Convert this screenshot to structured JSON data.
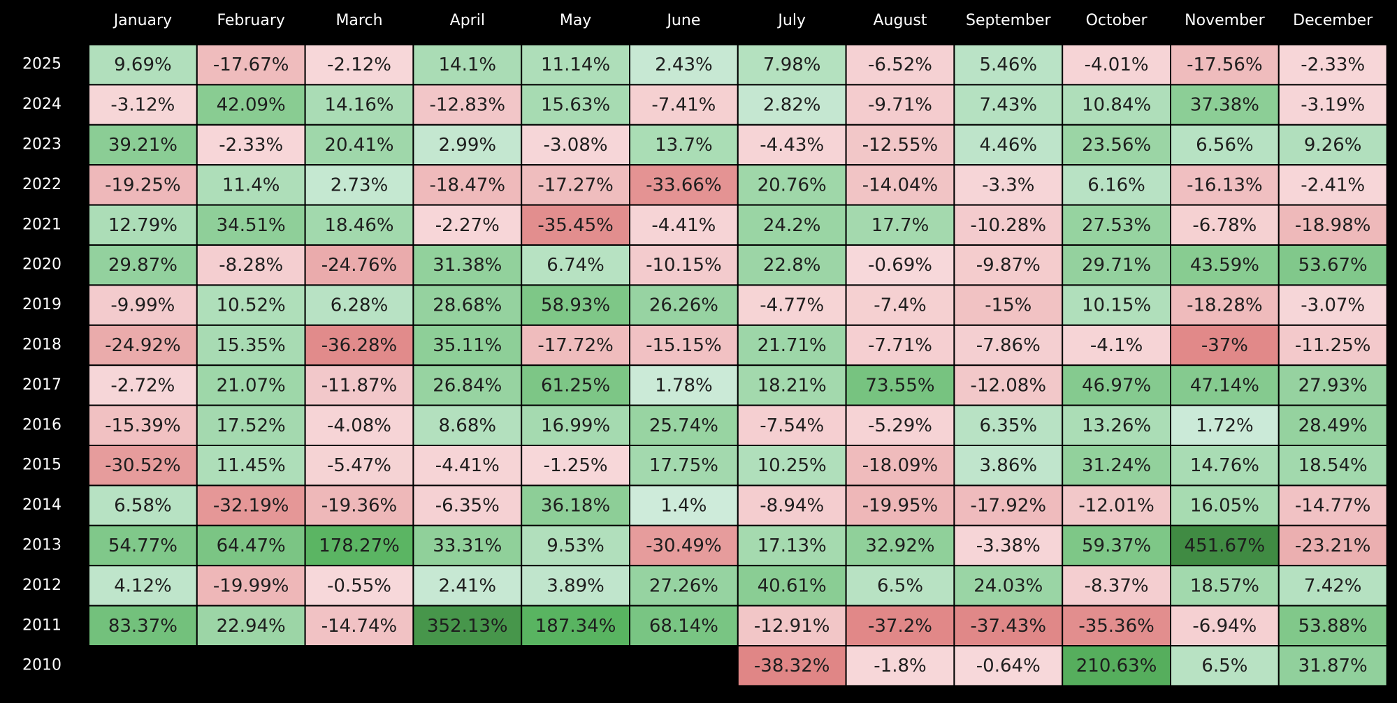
{
  "chart_data": {
    "type": "heatmap",
    "title": "",
    "xlabel": "",
    "ylabel": "",
    "months": [
      "January",
      "February",
      "March",
      "April",
      "May",
      "June",
      "July",
      "August",
      "September",
      "October",
      "November",
      "December"
    ],
    "years": [
      "2025",
      "2024",
      "2023",
      "2022",
      "2021",
      "2020",
      "2019",
      "2018",
      "2017",
      "2016",
      "2015",
      "2014",
      "2013",
      "2012",
      "2011",
      "2010"
    ],
    "values": [
      [
        9.69,
        -17.67,
        -2.12,
        14.1,
        11.14,
        2.43,
        7.98,
        -6.52,
        5.46,
        -4.01,
        -17.56,
        -2.33
      ],
      [
        -3.12,
        42.09,
        14.16,
        -12.83,
        15.63,
        -7.41,
        2.82,
        -9.71,
        7.43,
        10.84,
        37.38,
        -3.19
      ],
      [
        39.21,
        -2.33,
        20.41,
        2.99,
        -3.08,
        13.7,
        -4.43,
        -12.55,
        4.46,
        23.56,
        6.56,
        9.26
      ],
      [
        -19.25,
        11.4,
        2.73,
        -18.47,
        -17.27,
        -33.66,
        20.76,
        -14.04,
        -3.3,
        6.16,
        -16.13,
        -2.41
      ],
      [
        12.79,
        34.51,
        18.46,
        -2.27,
        -35.45,
        -4.41,
        24.2,
        17.7,
        -10.28,
        27.53,
        -6.78,
        -18.98
      ],
      [
        29.87,
        -8.28,
        -24.76,
        31.38,
        6.74,
        -10.15,
        22.8,
        -0.69,
        -9.87,
        29.71,
        43.59,
        53.67
      ],
      [
        -9.99,
        10.52,
        6.28,
        28.68,
        58.93,
        26.26,
        -4.77,
        -7.4,
        -15,
        10.15,
        -18.28,
        -3.07
      ],
      [
        -24.92,
        15.35,
        -36.28,
        35.11,
        -17.72,
        -15.15,
        21.71,
        -7.71,
        -7.86,
        -4.1,
        -37,
        -11.25
      ],
      [
        -2.72,
        21.07,
        -11.87,
        26.84,
        61.25,
        1.78,
        18.21,
        73.55,
        -12.08,
        46.97,
        47.14,
        27.93
      ],
      [
        -15.39,
        17.52,
        -4.08,
        8.68,
        16.99,
        25.74,
        -7.54,
        -5.29,
        6.35,
        13.26,
        1.72,
        28.49
      ],
      [
        -30.52,
        11.45,
        -5.47,
        -4.41,
        -1.25,
        17.75,
        10.25,
        -18.09,
        3.86,
        31.24,
        14.76,
        18.54
      ],
      [
        6.58,
        -32.19,
        -19.36,
        -6.35,
        36.18,
        1.4,
        -8.94,
        -19.95,
        -17.92,
        -12.01,
        16.05,
        -14.77
      ],
      [
        54.77,
        64.47,
        178.27,
        33.31,
        9.53,
        -30.49,
        17.13,
        32.92,
        -3.38,
        59.37,
        451.67,
        -23.21
      ],
      [
        4.12,
        -19.99,
        -0.55,
        2.41,
        3.89,
        27.26,
        40.61,
        6.5,
        24.03,
        -8.37,
        18.57,
        7.42
      ],
      [
        83.37,
        22.94,
        -14.74,
        352.13,
        187.34,
        68.14,
        -12.91,
        -37.2,
        -37.43,
        -35.36,
        -6.94,
        53.88
      ],
      [
        null,
        null,
        null,
        null,
        null,
        null,
        -38.32,
        -1.8,
        -0.64,
        210.63,
        6.5,
        31.87
      ]
    ],
    "value_suffix": "%",
    "colors": {
      "background": "#000000",
      "positive_light": "#dff2ec",
      "positive_mid": "#a9dcb4",
      "positive_strong": "#5ab562",
      "positive_max": "#3f8a42",
      "negative_light": "#f7d8da",
      "negative_strong": "#e08686"
    }
  }
}
